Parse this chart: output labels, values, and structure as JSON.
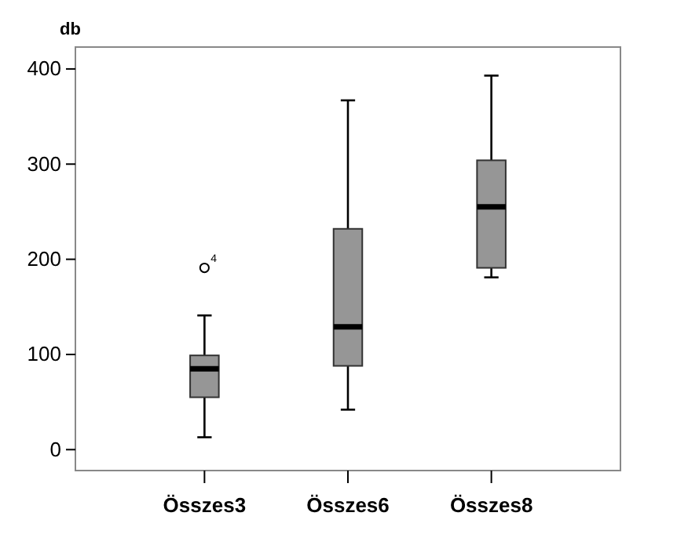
{
  "chart_data": {
    "type": "box",
    "ylabel": "db",
    "categories": [
      "Összes3",
      "Összes6",
      "Összes8"
    ],
    "color": "#969696",
    "boxes": [
      {
        "low": 13,
        "q1": 55,
        "median": 85,
        "q3": 99,
        "high": 141,
        "outliers": [
          191
        ]
      },
      {
        "low": 42,
        "q1": 88,
        "median": 129,
        "q3": 232,
        "high": 367
      },
      {
        "low": 181,
        "q1": 191,
        "median": 255,
        "q3": 304,
        "high": 393
      }
    ],
    "annotations": [
      "4"
    ],
    "ylim": [
      -22,
      423
    ],
    "yticks": [
      0,
      100,
      200,
      300,
      400
    ]
  }
}
